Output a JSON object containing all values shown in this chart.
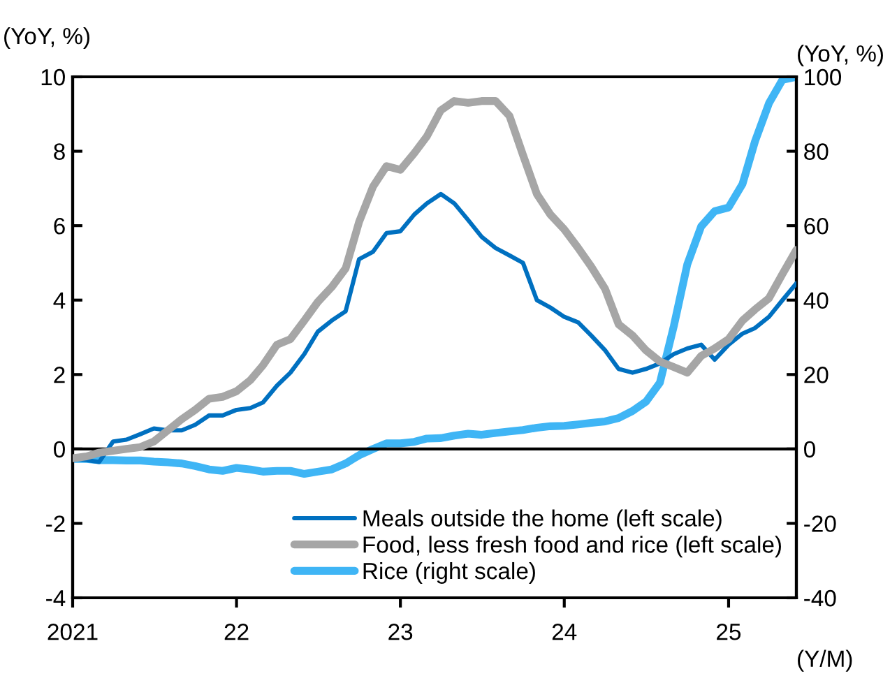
{
  "chart_data": {
    "type": "line",
    "ylabel": "(YoY, %)",
    "y2label": "(YoY, %)",
    "xlabel": "(Y/M)",
    "x": [
      "2021-01",
      "2021-02",
      "2021-03",
      "2021-04",
      "2021-05",
      "2021-06",
      "2021-07",
      "2021-08",
      "2021-09",
      "2021-10",
      "2021-11",
      "2021-12",
      "2022-01",
      "2022-02",
      "2022-03",
      "2022-04",
      "2022-05",
      "2022-06",
      "2022-07",
      "2022-08",
      "2022-09",
      "2022-10",
      "2022-11",
      "2022-12",
      "2023-01",
      "2023-02",
      "2023-03",
      "2023-04",
      "2023-05",
      "2023-06",
      "2023-07",
      "2023-08",
      "2023-09",
      "2023-10",
      "2023-11",
      "2023-12",
      "2024-01",
      "2024-02",
      "2024-03",
      "2024-04",
      "2024-05",
      "2024-06",
      "2024-07",
      "2024-08",
      "2024-09",
      "2024-10",
      "2024-11",
      "2024-12",
      "2025-01",
      "2025-02",
      "2025-03",
      "2025-04",
      "2025-05",
      "2025-06"
    ],
    "series": [
      {
        "name": "Meals outside the home (left scale)",
        "color": "#0070c0",
        "values": [
          -0.25,
          -0.3,
          -0.35,
          0.2,
          0.25,
          0.4,
          0.55,
          0.5,
          0.5,
          0.65,
          0.9,
          0.9,
          1.05,
          1.1,
          1.25,
          1.7,
          2.05,
          2.55,
          3.15,
          3.45,
          3.7,
          5.1,
          5.3,
          5.8,
          5.85,
          6.3,
          6.6,
          6.85,
          6.6,
          6.15,
          5.7,
          5.4,
          5.2,
          5.0,
          4.0,
          3.8,
          3.55,
          3.4,
          3.05,
          2.65,
          2.15,
          2.05,
          2.15,
          2.3,
          2.55,
          2.7,
          2.8,
          2.4,
          2.8,
          3.1,
          3.25,
          3.55,
          4.0,
          4.45
        ]
      },
      {
        "name": "Food, less fresh food and rice (left scale)",
        "color": "#a6a6a6",
        "values": [
          -0.25,
          -0.2,
          -0.1,
          -0.05,
          0.0,
          0.05,
          0.2,
          0.5,
          0.8,
          1.05,
          1.35,
          1.4,
          1.55,
          1.85,
          2.25,
          2.8,
          2.95,
          3.45,
          3.95,
          4.35,
          4.85,
          6.1,
          7.05,
          7.6,
          7.5,
          7.95,
          8.4,
          9.1,
          9.35,
          9.3,
          9.35,
          9.35,
          8.95,
          7.9,
          6.85,
          6.3,
          5.9,
          5.4,
          4.9,
          4.3,
          3.35,
          3.05,
          2.65,
          2.35,
          2.2,
          2.05,
          2.5,
          2.7,
          2.95,
          3.45,
          3.75,
          4.05,
          4.7,
          5.35
        ]
      },
      {
        "name": "Rice (right scale)",
        "color": "#3fb5f5",
        "axis": "y2",
        "values": [
          -2.7,
          -2.7,
          -3.0,
          -3.0,
          -3.1,
          -3.1,
          -3.4,
          -3.6,
          -3.9,
          -4.6,
          -5.5,
          -5.9,
          -5.1,
          -5.5,
          -6.1,
          -5.9,
          -5.9,
          -6.7,
          -6.1,
          -5.5,
          -3.9,
          -1.7,
          0.0,
          1.5,
          1.5,
          1.9,
          2.8,
          2.9,
          3.6,
          4.1,
          3.8,
          4.3,
          4.7,
          5.1,
          5.7,
          6.1,
          6.2,
          6.6,
          7.0,
          7.4,
          8.3,
          10.2,
          12.7,
          17.8,
          33,
          49.6,
          59.8,
          63.9,
          64.9,
          71.2,
          82.7,
          92.9,
          99.2,
          100
        ]
      }
    ],
    "xlim": [
      "2021-01",
      "2025-06"
    ],
    "xticks": [
      {
        "value": "2021-01",
        "label": "2021"
      },
      {
        "value": "2022-01",
        "label": "22"
      },
      {
        "value": "2023-01",
        "label": "23"
      },
      {
        "value": "2024-01",
        "label": "24"
      },
      {
        "value": "2025-01",
        "label": "25"
      }
    ],
    "ylim": [
      -4,
      10
    ],
    "yticks": [
      -4,
      -2,
      0,
      2,
      4,
      6,
      8,
      10
    ],
    "y2lim": [
      -40,
      100
    ],
    "y2ticks": [
      -40,
      -20,
      0,
      20,
      40,
      60,
      80,
      100
    ],
    "ref_lines": [
      {
        "axis": "y",
        "value": 0,
        "color": "#000000"
      }
    ],
    "legend": "bottom",
    "grid": false,
    "line_style": "solid",
    "marker": "none"
  }
}
